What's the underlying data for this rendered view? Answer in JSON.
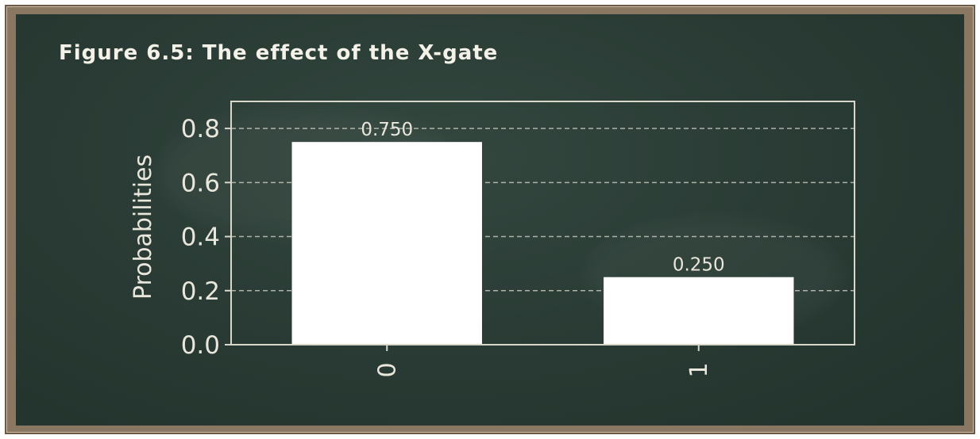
{
  "figure_title": "Figure 6.5: The effect of the X-gate",
  "colors": {
    "board": "#2a3c35",
    "frame": "#8a7761",
    "bar": "#ffffff",
    "axis": "#d9d6cc",
    "grid": "#cfcfc6",
    "text": "#e9e6dc"
  },
  "chart_data": {
    "type": "bar",
    "categories": [
      "0",
      "1"
    ],
    "values": [
      0.75,
      0.25
    ],
    "value_labels": [
      "0.750",
      "0.250"
    ],
    "title": "",
    "xlabel": "",
    "ylabel": "Probabilities",
    "ylim": [
      0,
      0.9
    ],
    "yticks": [
      0.0,
      0.2,
      0.4,
      0.6,
      0.8
    ],
    "ytick_labels": [
      "0.0",
      "0.2",
      "0.4",
      "0.6",
      "0.8"
    ],
    "grid": "horizontal dashed",
    "xtick_rotation": "vertical",
    "legend": "none"
  }
}
